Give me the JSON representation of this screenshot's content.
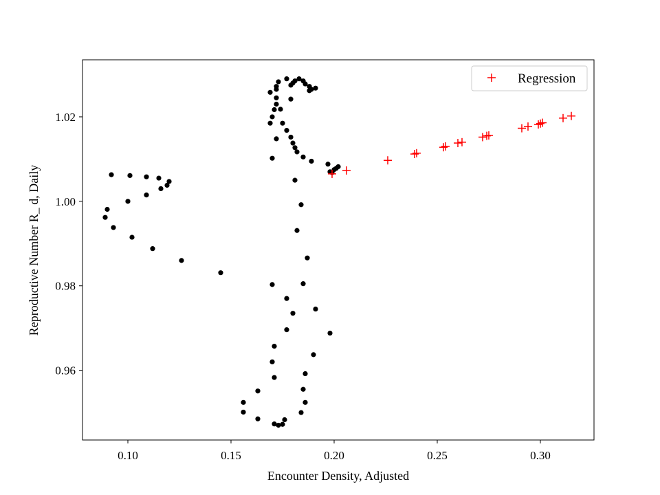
{
  "chart_data": {
    "type": "scatter",
    "title": "",
    "xlabel": "Encounter Density, Adjusted",
    "ylabel": "Reproductive Number R_ d, Daily",
    "xlim": [
      0.078,
      0.326
    ],
    "ylim": [
      0.9435,
      1.0335
    ],
    "xticks": [
      {
        "value": 0.1,
        "label": "0.10"
      },
      {
        "value": 0.15,
        "label": "0.15"
      },
      {
        "value": 0.2,
        "label": "0.20"
      },
      {
        "value": 0.25,
        "label": "0.25"
      },
      {
        "value": 0.3,
        "label": "0.30"
      }
    ],
    "yticks": [
      {
        "value": 0.96,
        "label": "0.96"
      },
      {
        "value": 0.98,
        "label": "0.98"
      },
      {
        "value": 1.0,
        "label": "1.00"
      },
      {
        "value": 1.02,
        "label": "1.02"
      }
    ],
    "legend": {
      "position": "top-right",
      "entries": [
        {
          "label": "Regression",
          "marker": "plus",
          "color": "#ff0000"
        }
      ]
    },
    "series": [
      {
        "name": "observed",
        "marker": "circle",
        "color": "#000000",
        "in_legend": false,
        "points": [
          [
            0.177,
            1.029
          ],
          [
            0.181,
            1.0285
          ],
          [
            0.183,
            1.029
          ],
          [
            0.185,
            1.0285
          ],
          [
            0.186,
            1.0278
          ],
          [
            0.188,
            1.0272
          ],
          [
            0.191,
            1.0268
          ],
          [
            0.189,
            1.0265
          ],
          [
            0.188,
            1.0262
          ],
          [
            0.179,
            1.0275
          ],
          [
            0.18,
            1.028
          ],
          [
            0.173,
            1.0283
          ],
          [
            0.172,
            1.0272
          ],
          [
            0.172,
            1.0265
          ],
          [
            0.169,
            1.0258
          ],
          [
            0.172,
            1.0245
          ],
          [
            0.179,
            1.0242
          ],
          [
            0.172,
            1.023
          ],
          [
            0.174,
            1.0218
          ],
          [
            0.171,
            1.0217
          ],
          [
            0.17,
            1.02
          ],
          [
            0.169,
            1.0185
          ],
          [
            0.175,
            1.0185
          ],
          [
            0.177,
            1.0168
          ],
          [
            0.179,
            1.0152
          ],
          [
            0.172,
            1.0148
          ],
          [
            0.18,
            1.0138
          ],
          [
            0.181,
            1.0127
          ],
          [
            0.182,
            1.0117
          ],
          [
            0.185,
            1.0105
          ],
          [
            0.17,
            1.0102
          ],
          [
            0.189,
            1.0095
          ],
          [
            0.197,
            1.0088
          ],
          [
            0.202,
            1.0082
          ],
          [
            0.201,
            1.0078
          ],
          [
            0.2,
            1.0075
          ],
          [
            0.198,
            1.007
          ],
          [
            0.199,
            1.0068
          ],
          [
            0.181,
            1.005
          ],
          [
            0.184,
            0.9992
          ],
          [
            0.182,
            0.9931
          ],
          [
            0.187,
            0.9866
          ],
          [
            0.185,
            0.9805
          ],
          [
            0.177,
            0.977
          ],
          [
            0.17,
            0.9803
          ],
          [
            0.191,
            0.9745
          ],
          [
            0.18,
            0.9735
          ],
          [
            0.177,
            0.9696
          ],
          [
            0.198,
            0.9688
          ],
          [
            0.171,
            0.9657
          ],
          [
            0.19,
            0.9637
          ],
          [
            0.17,
            0.962
          ],
          [
            0.186,
            0.9592
          ],
          [
            0.171,
            0.9583
          ],
          [
            0.185,
            0.9555
          ],
          [
            0.163,
            0.9551
          ],
          [
            0.186,
            0.9524
          ],
          [
            0.156,
            0.9524
          ],
          [
            0.156,
            0.9501
          ],
          [
            0.184,
            0.95
          ],
          [
            0.163,
            0.9485
          ],
          [
            0.176,
            0.9483
          ],
          [
            0.171,
            0.9473
          ],
          [
            0.173,
            0.947
          ],
          [
            0.175,
            0.9472
          ],
          [
            0.145,
            0.9831
          ],
          [
            0.126,
            0.986
          ],
          [
            0.112,
            0.9888
          ],
          [
            0.102,
            0.9915
          ],
          [
            0.093,
            0.9938
          ],
          [
            0.089,
            0.9962
          ],
          [
            0.09,
            0.9981
          ],
          [
            0.1,
            1.0
          ],
          [
            0.109,
            1.0015
          ],
          [
            0.116,
            1.003
          ],
          [
            0.119,
            1.0038
          ],
          [
            0.12,
            1.0047
          ],
          [
            0.115,
            1.0055
          ],
          [
            0.109,
            1.0058
          ],
          [
            0.101,
            1.0061
          ],
          [
            0.092,
            1.0063
          ]
        ]
      },
      {
        "name": "Regression",
        "marker": "plus",
        "color": "#ff0000",
        "in_legend": true,
        "points": [
          [
            0.199,
            1.0065
          ],
          [
            0.206,
            1.0073
          ],
          [
            0.226,
            1.0097
          ],
          [
            0.239,
            1.0112
          ],
          [
            0.24,
            1.0114
          ],
          [
            0.253,
            1.0128
          ],
          [
            0.254,
            1.013
          ],
          [
            0.26,
            1.0138
          ],
          [
            0.262,
            1.014
          ],
          [
            0.272,
            1.0152
          ],
          [
            0.274,
            1.0155
          ],
          [
            0.275,
            1.0156
          ],
          [
            0.291,
            1.0173
          ],
          [
            0.294,
            1.0177
          ],
          [
            0.299,
            1.0182
          ],
          [
            0.3,
            1.0184
          ],
          [
            0.301,
            1.0186
          ],
          [
            0.311,
            1.0197
          ],
          [
            0.315,
            1.0202
          ]
        ]
      }
    ]
  }
}
